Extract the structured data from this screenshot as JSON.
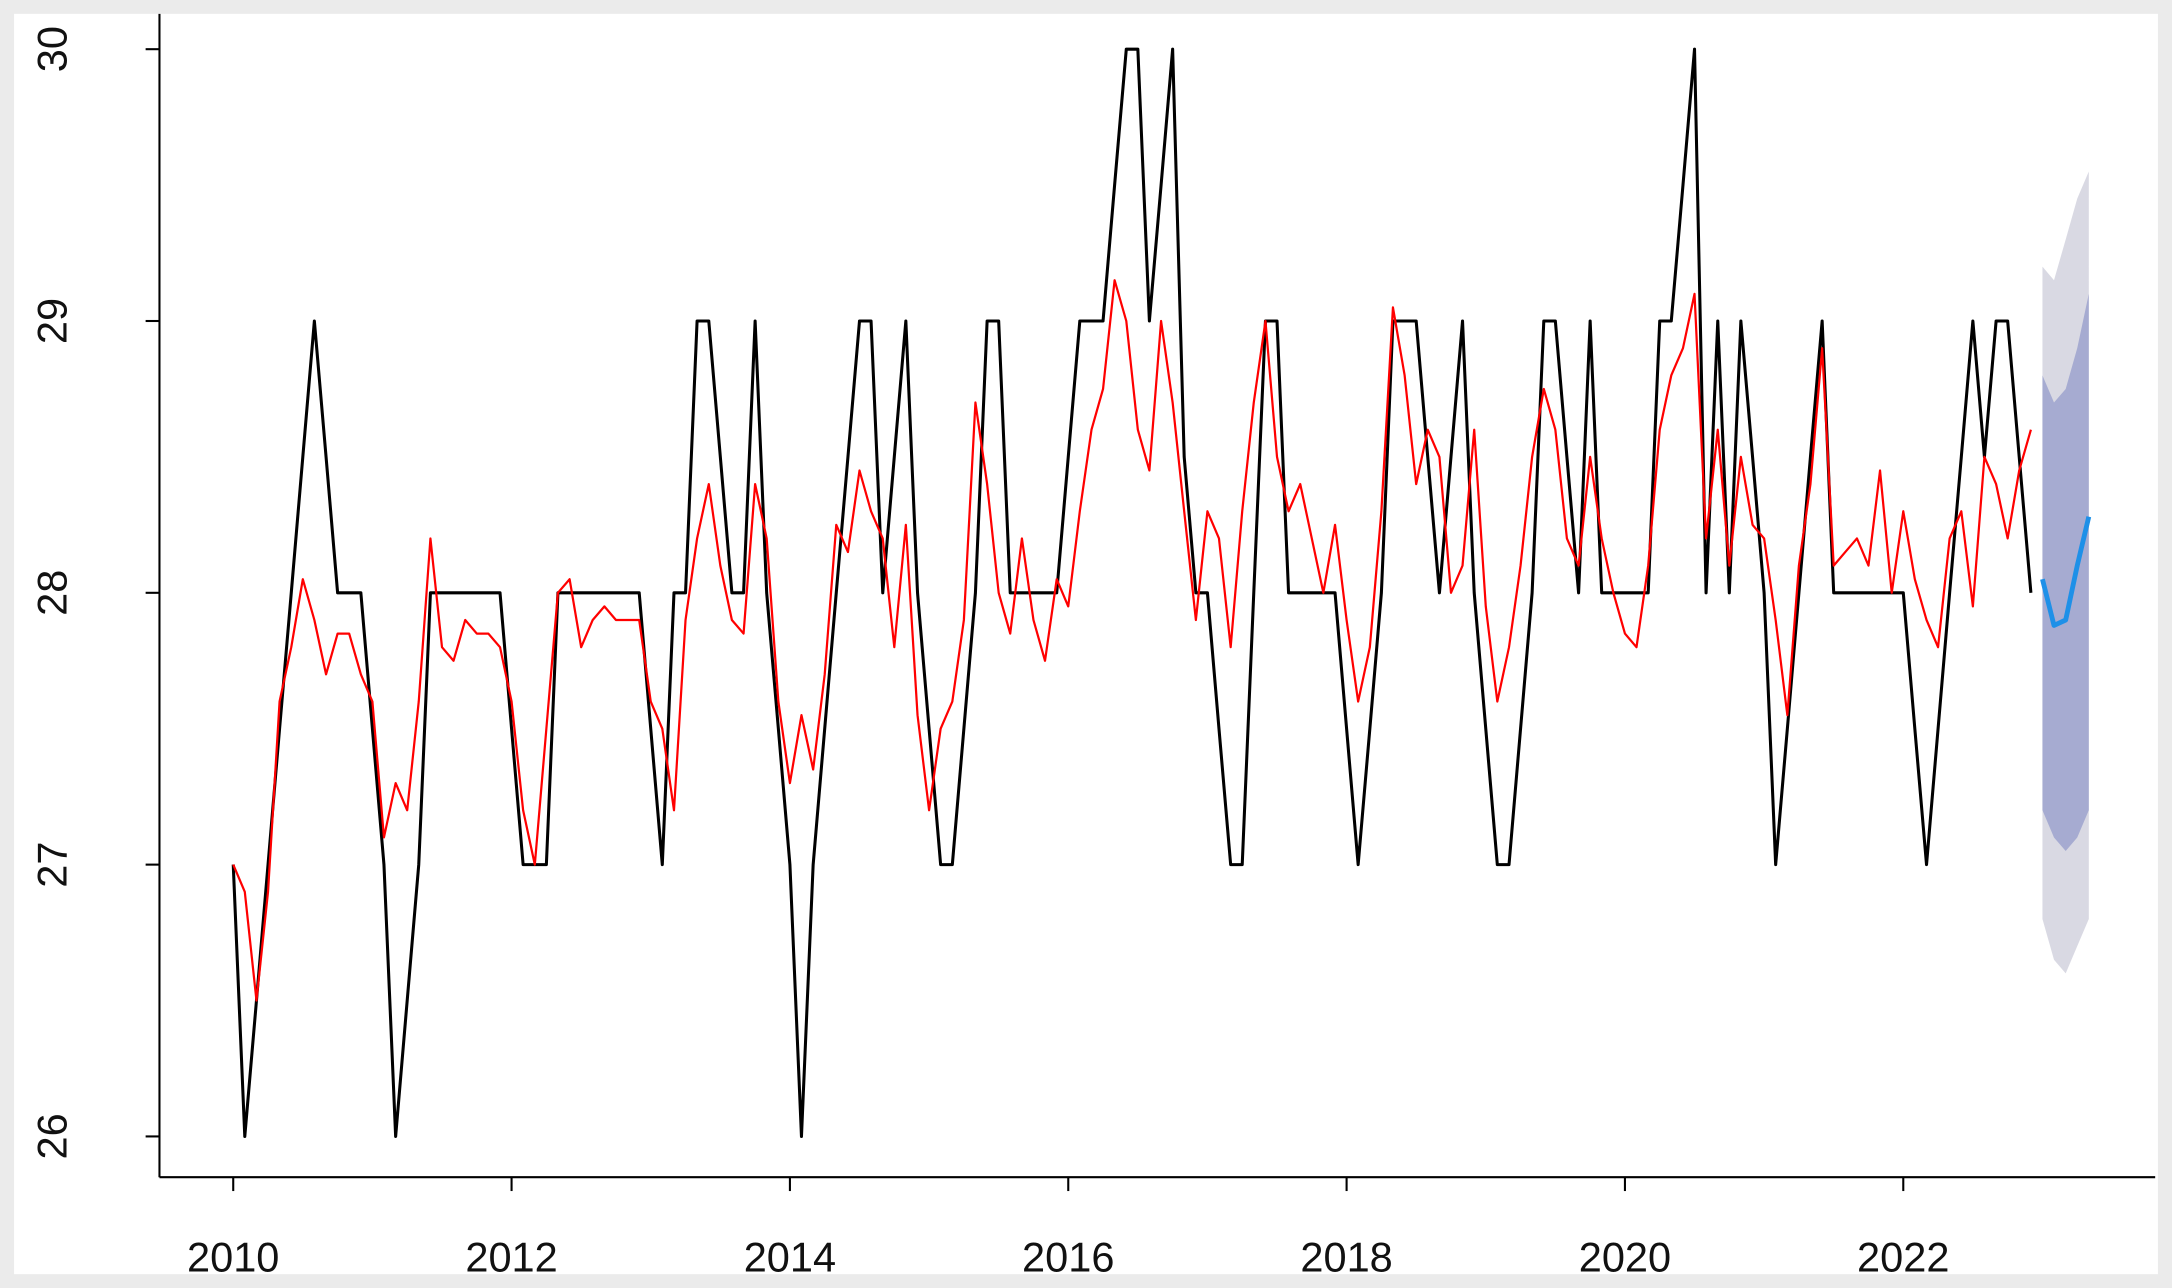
{
  "chart_data": {
    "type": "line",
    "xlim": [
      2009.47,
      2023.81
    ],
    "ylim": [
      25.85,
      30.13
    ],
    "xticks": [
      2010,
      2012,
      2014,
      2016,
      2018,
      2020,
      2022
    ],
    "yticks": [
      26,
      27,
      28,
      29,
      30
    ],
    "x": [
      2010,
      2010.083,
      2010.167,
      2010.25,
      2010.333,
      2010.417,
      2010.5,
      2010.583,
      2010.667,
      2010.75,
      2010.833,
      2010.917,
      2011,
      2011.083,
      2011.167,
      2011.25,
      2011.333,
      2011.417,
      2011.5,
      2011.583,
      2011.667,
      2011.75,
      2011.833,
      2011.917,
      2012,
      2012.083,
      2012.167,
      2012.25,
      2012.333,
      2012.417,
      2012.5,
      2012.583,
      2012.667,
      2012.75,
      2012.833,
      2012.917,
      2013,
      2013.083,
      2013.167,
      2013.25,
      2013.333,
      2013.417,
      2013.5,
      2013.583,
      2013.667,
      2013.75,
      2013.833,
      2013.917,
      2014,
      2014.083,
      2014.167,
      2014.25,
      2014.333,
      2014.417,
      2014.5,
      2014.583,
      2014.667,
      2014.75,
      2014.833,
      2014.917,
      2015,
      2015.083,
      2015.167,
      2015.25,
      2015.333,
      2015.417,
      2015.5,
      2015.583,
      2015.667,
      2015.75,
      2015.833,
      2015.917,
      2016,
      2016.083,
      2016.167,
      2016.25,
      2016.333,
      2016.417,
      2016.5,
      2016.583,
      2016.667,
      2016.75,
      2016.833,
      2016.917,
      2017,
      2017.083,
      2017.167,
      2017.25,
      2017.333,
      2017.417,
      2017.5,
      2017.583,
      2017.667,
      2017.75,
      2017.833,
      2017.917,
      2018,
      2018.083,
      2018.167,
      2018.25,
      2018.333,
      2018.417,
      2018.5,
      2018.583,
      2018.667,
      2018.75,
      2018.833,
      2018.917,
      2019,
      2019.083,
      2019.167,
      2019.25,
      2019.333,
      2019.417,
      2019.5,
      2019.583,
      2019.667,
      2019.75,
      2019.833,
      2019.917,
      2020,
      2020.083,
      2020.167,
      2020.25,
      2020.333,
      2020.417,
      2020.5,
      2020.583,
      2020.667,
      2020.75,
      2020.833,
      2020.917,
      2021,
      2021.083,
      2021.167,
      2021.25,
      2021.333,
      2021.417,
      2021.5,
      2021.583,
      2021.667,
      2021.75,
      2021.833,
      2021.917,
      2022,
      2022.083,
      2022.167,
      2022.25,
      2022.333,
      2022.417,
      2022.5,
      2022.583,
      2022.667,
      2022.75,
      2022.833,
      2022.917
    ],
    "series": [
      {
        "color": "#000000",
        "values": [
          27,
          26,
          26.5,
          27,
          27.5,
          28,
          28.5,
          29,
          28.5,
          28,
          28,
          28,
          27.5,
          27,
          26,
          26.5,
          27,
          28,
          28,
          28,
          28,
          28,
          28,
          28,
          27.5,
          27,
          27,
          27,
          28,
          28,
          28,
          28,
          28,
          28,
          28,
          28,
          27.5,
          27,
          28,
          28,
          29,
          29,
          28.5,
          28,
          28,
          29,
          28,
          27.5,
          27,
          26,
          27,
          27.5,
          28,
          28.5,
          29,
          29,
          28,
          28.5,
          29,
          28,
          27.5,
          27,
          27,
          27.5,
          28,
          29,
          29,
          28,
          28,
          28,
          28,
          28,
          28.5,
          29,
          29,
          29,
          29.5,
          30,
          30,
          29,
          29.5,
          30,
          28.5,
          28,
          28,
          27.5,
          27,
          27,
          28,
          29,
          29,
          28,
          28,
          28,
          28,
          28,
          27.5,
          27,
          27.5,
          28,
          29,
          29,
          29,
          28.5,
          28,
          28.5,
          29,
          28,
          27.5,
          27,
          27,
          27.5,
          28,
          29,
          29,
          28.5,
          28,
          29,
          28,
          28,
          28,
          28,
          28,
          29,
          29,
          29.5,
          30,
          28,
          29,
          28,
          29,
          28.5,
          28,
          27,
          27.5,
          28,
          28.5,
          29,
          28,
          28,
          28,
          28,
          28,
          28,
          28,
          27.5,
          27,
          27.5,
          28,
          28.5,
          29,
          28.5,
          29,
          29,
          28.5,
          28
        ]
      },
      {
        "color": "#ff0000",
        "values": [
          27,
          26.9,
          26.5,
          26.9,
          27.6,
          27.8,
          28.05,
          27.9,
          27.7,
          27.85,
          27.85,
          27.7,
          27.6,
          27.1,
          27.3,
          27.2,
          27.6,
          28.2,
          27.8,
          27.75,
          27.9,
          27.85,
          27.85,
          27.8,
          27.6,
          27.2,
          27,
          27.5,
          28,
          28.05,
          27.8,
          27.9,
          27.95,
          27.9,
          27.9,
          27.9,
          27.6,
          27.5,
          27.2,
          27.9,
          28.2,
          28.4,
          28.1,
          27.9,
          27.85,
          28.4,
          28.2,
          27.6,
          27.3,
          27.55,
          27.35,
          27.7,
          28.25,
          28.15,
          28.45,
          28.3,
          28.2,
          27.8,
          28.25,
          27.55,
          27.2,
          27.5,
          27.6,
          27.9,
          28.7,
          28.4,
          28,
          27.85,
          28.2,
          27.9,
          27.75,
          28.05,
          27.95,
          28.3,
          28.6,
          28.75,
          29.15,
          29,
          28.6,
          28.45,
          29,
          28.7,
          28.3,
          27.9,
          28.3,
          28.2,
          27.8,
          28.3,
          28.7,
          29,
          28.5,
          28.3,
          28.4,
          28.2,
          28,
          28.25,
          27.9,
          27.6,
          27.8,
          28.3,
          29.05,
          28.8,
          28.4,
          28.6,
          28.5,
          28,
          28.1,
          28.6,
          27.95,
          27.6,
          27.8,
          28.1,
          28.5,
          28.75,
          28.6,
          28.2,
          28.1,
          28.5,
          28.2,
          28,
          27.85,
          27.8,
          28.1,
          28.6,
          28.8,
          28.9,
          29.1,
          28.2,
          28.6,
          28.1,
          28.5,
          28.25,
          28.2,
          27.9,
          27.55,
          28.1,
          28.4,
          28.9,
          28.1,
          28.15,
          28.2,
          28.1,
          28.45,
          28,
          28.3,
          28.05,
          27.9,
          27.8,
          28.2,
          28.3,
          27.95,
          28.5,
          28.4,
          28.2,
          28.45,
          28.6
        ]
      }
    ],
    "forecast": {
      "x": [
        2023,
        2023.083,
        2023.167,
        2023.25,
        2023.333
      ],
      "color": "#1e90e8",
      "values": [
        28.05,
        27.88,
        27.9,
        28.1,
        28.28
      ],
      "lo80": [
        27.2,
        27.1,
        27.05,
        27.1,
        27.2
      ],
      "hi80": [
        28.8,
        28.7,
        28.75,
        28.9,
        29.1
      ],
      "lo95": [
        26.8,
        26.65,
        26.6,
        26.7,
        26.8
      ],
      "hi95": [
        29.2,
        29.15,
        29.3,
        29.45,
        29.55
      ],
      "color80": "#a6abd1",
      "color95": "#d9d9e3"
    }
  }
}
